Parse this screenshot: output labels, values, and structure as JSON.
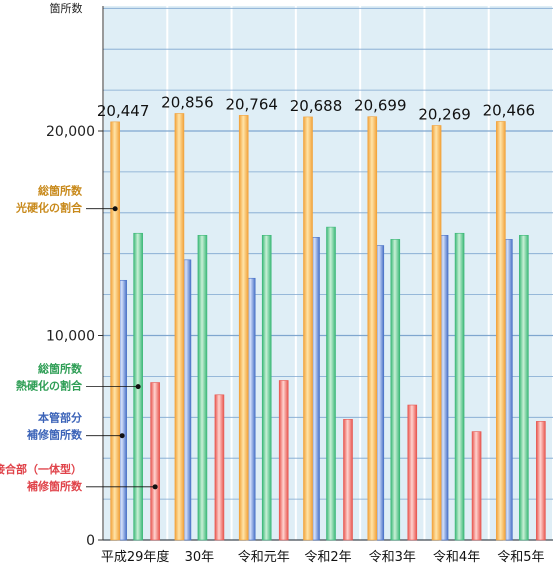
{
  "colors": {
    "panel_bg": "#dfeef6",
    "grid": "#7fa6cf",
    "axis": "#333333",
    "total": "#f2a23a",
    "thermal": "#3cb878",
    "main_pipe": "#4a72c7",
    "joint": "#e8564f",
    "label_total": "#c8891a",
    "label_thermal": "#2e9e55",
    "label_main": "#3b63b8",
    "label_joint": "#e0434a"
  },
  "chart_data": {
    "type": "bar",
    "ylabel": "箇所数",
    "ylim": [
      0,
      26000
    ],
    "yticks": [
      0,
      10000,
      20000
    ],
    "ytick_labels": [
      "0",
      "10,000",
      "20,000"
    ],
    "grid": true,
    "categories": [
      "平成29年度",
      "30年",
      "令和元年",
      "令和2年",
      "令和3年",
      "令和4年",
      "令和5年"
    ],
    "series": [
      {
        "name": "本管部分 補修箇所数",
        "color_key": "main_pipe",
        "values": [
          12700,
          13700,
          12800,
          14800,
          14400,
          14900,
          14700
        ]
      },
      {
        "name": "総箇所数 熱硬化の割合",
        "color_key": "thermal",
        "values": [
          15000,
          14900,
          14900,
          15300,
          14700,
          15000,
          14900
        ]
      },
      {
        "name": "総箇所数 光硬化の割合",
        "color_key": "total",
        "values": [
          20447,
          20856,
          20764,
          20688,
          20699,
          20269,
          20466
        ]
      },
      {
        "name": "接合部（一体型） 補修箇所数",
        "color_key": "joint",
        "values": [
          7700,
          7100,
          7800,
          5900,
          6600,
          5300,
          5800
        ]
      }
    ],
    "data_labels": [
      "20,447",
      "20,856",
      "20,764",
      "20,688",
      "20,699",
      "20,269",
      "20,466"
    ],
    "annotations": [
      {
        "lines": [
          "総箇所数",
          "光硬化の割合"
        ],
        "color_key": "label_total",
        "series": 2,
        "category": 0,
        "at_value": 16200
      },
      {
        "lines": [
          "総箇所数",
          "熱硬化の割合"
        ],
        "color_key": "label_thermal",
        "series": 1,
        "category": 0,
        "at_value": 7500
      },
      {
        "lines": [
          "本管部分",
          "補修箇所数"
        ],
        "color_key": "label_main",
        "series": 0,
        "category": 0,
        "at_value": 5100
      },
      {
        "lines": [
          "接合部（一体型）",
          "補修箇所数"
        ],
        "color_key": "label_joint",
        "series": 3,
        "category": 0,
        "at_value": 2600
      }
    ]
  }
}
